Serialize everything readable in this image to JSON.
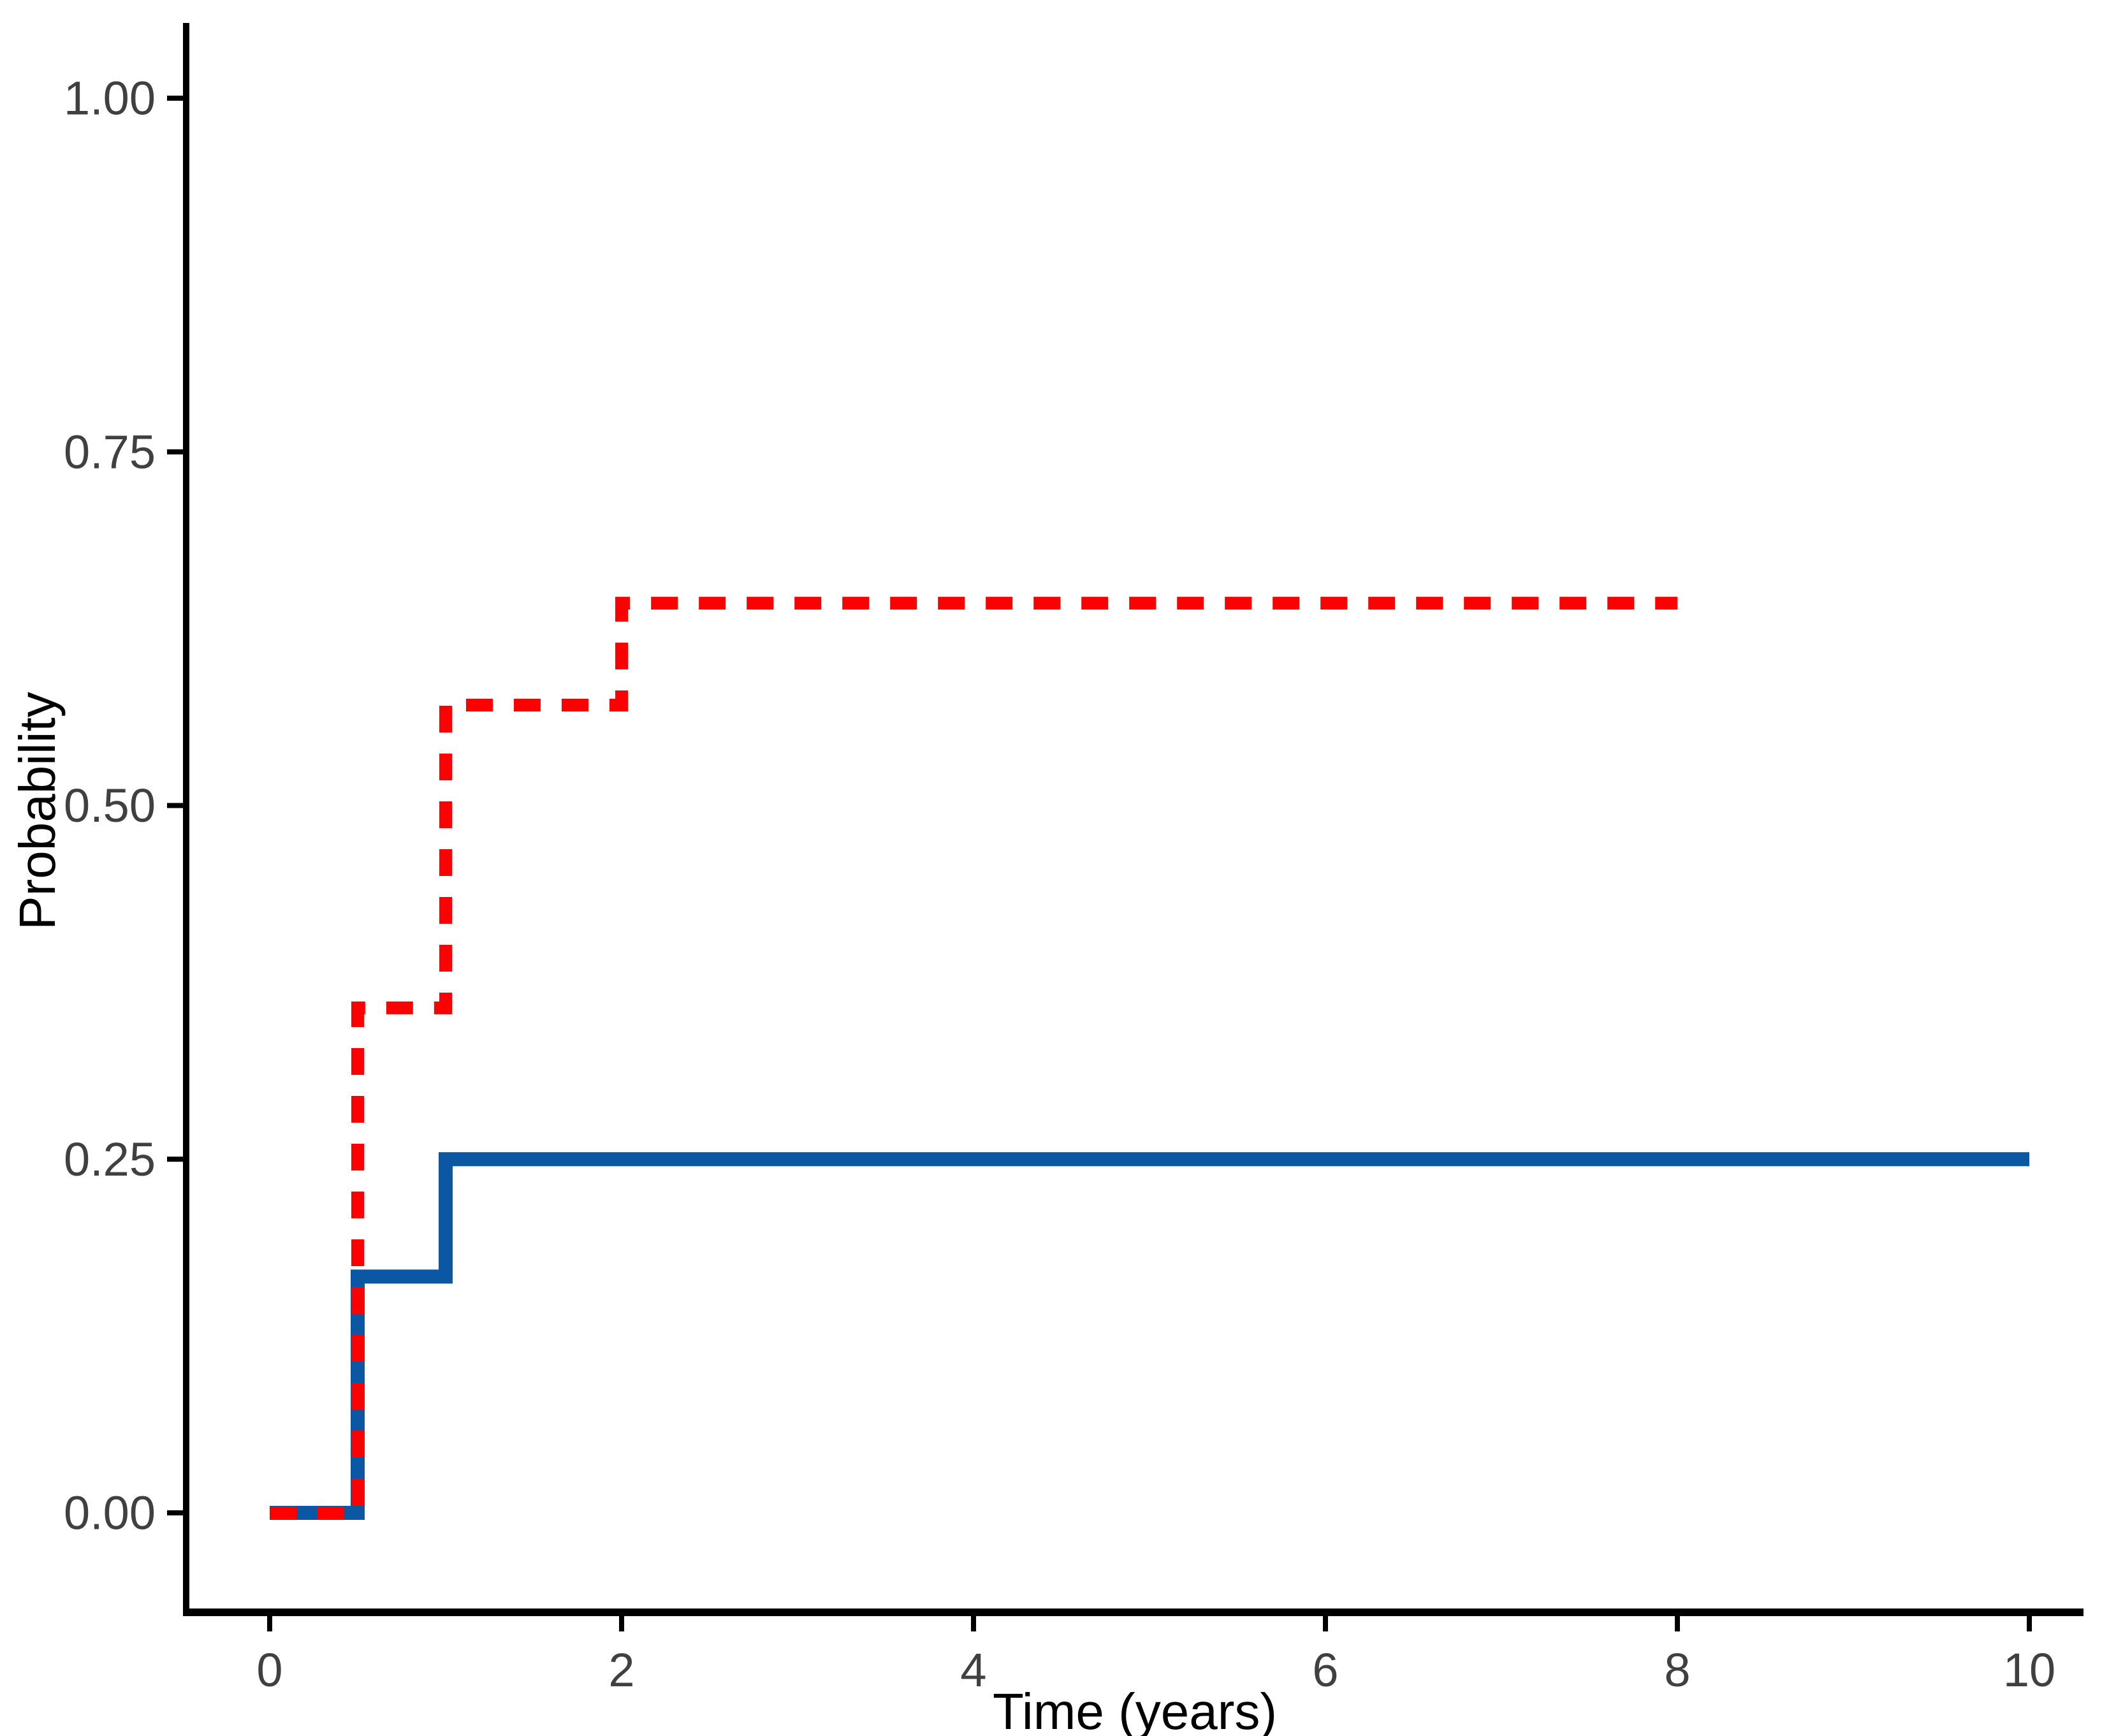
{
  "chart_data": {
    "type": "line",
    "subtype": "step",
    "title": "",
    "xlabel": "Time (years)",
    "ylabel": "Probability",
    "xlim": [
      0,
      10
    ],
    "ylim": [
      0,
      1
    ],
    "grid": false,
    "legend": false,
    "x_ticks": {
      "values": [
        0,
        2,
        4,
        6,
        8,
        10
      ],
      "labels": [
        "0",
        "2",
        "4",
        "6",
        "8",
        "10"
      ]
    },
    "y_ticks": {
      "values": [
        0.0,
        0.25,
        0.5,
        0.75,
        1.0
      ],
      "labels": [
        "0.00",
        "0.25",
        "0.50",
        "0.75",
        "1.00"
      ]
    },
    "series": [
      {
        "name": "blue-solid",
        "color": "#0B57A4",
        "line_style": "solid",
        "step_points": [
          [
            0,
            0
          ],
          [
            0.5,
            0.167
          ],
          [
            1,
            0.25
          ]
        ],
        "end_x": 10
      },
      {
        "name": "red-dashed",
        "color": "#FF0000",
        "line_style": "dashed",
        "step_points": [
          [
            0,
            0
          ],
          [
            0.5,
            0.357
          ],
          [
            1,
            0.571
          ],
          [
            2,
            0.643
          ]
        ],
        "end_x": 8
      }
    ],
    "axis_color": "#000000",
    "tick_label_color": "#404040"
  }
}
